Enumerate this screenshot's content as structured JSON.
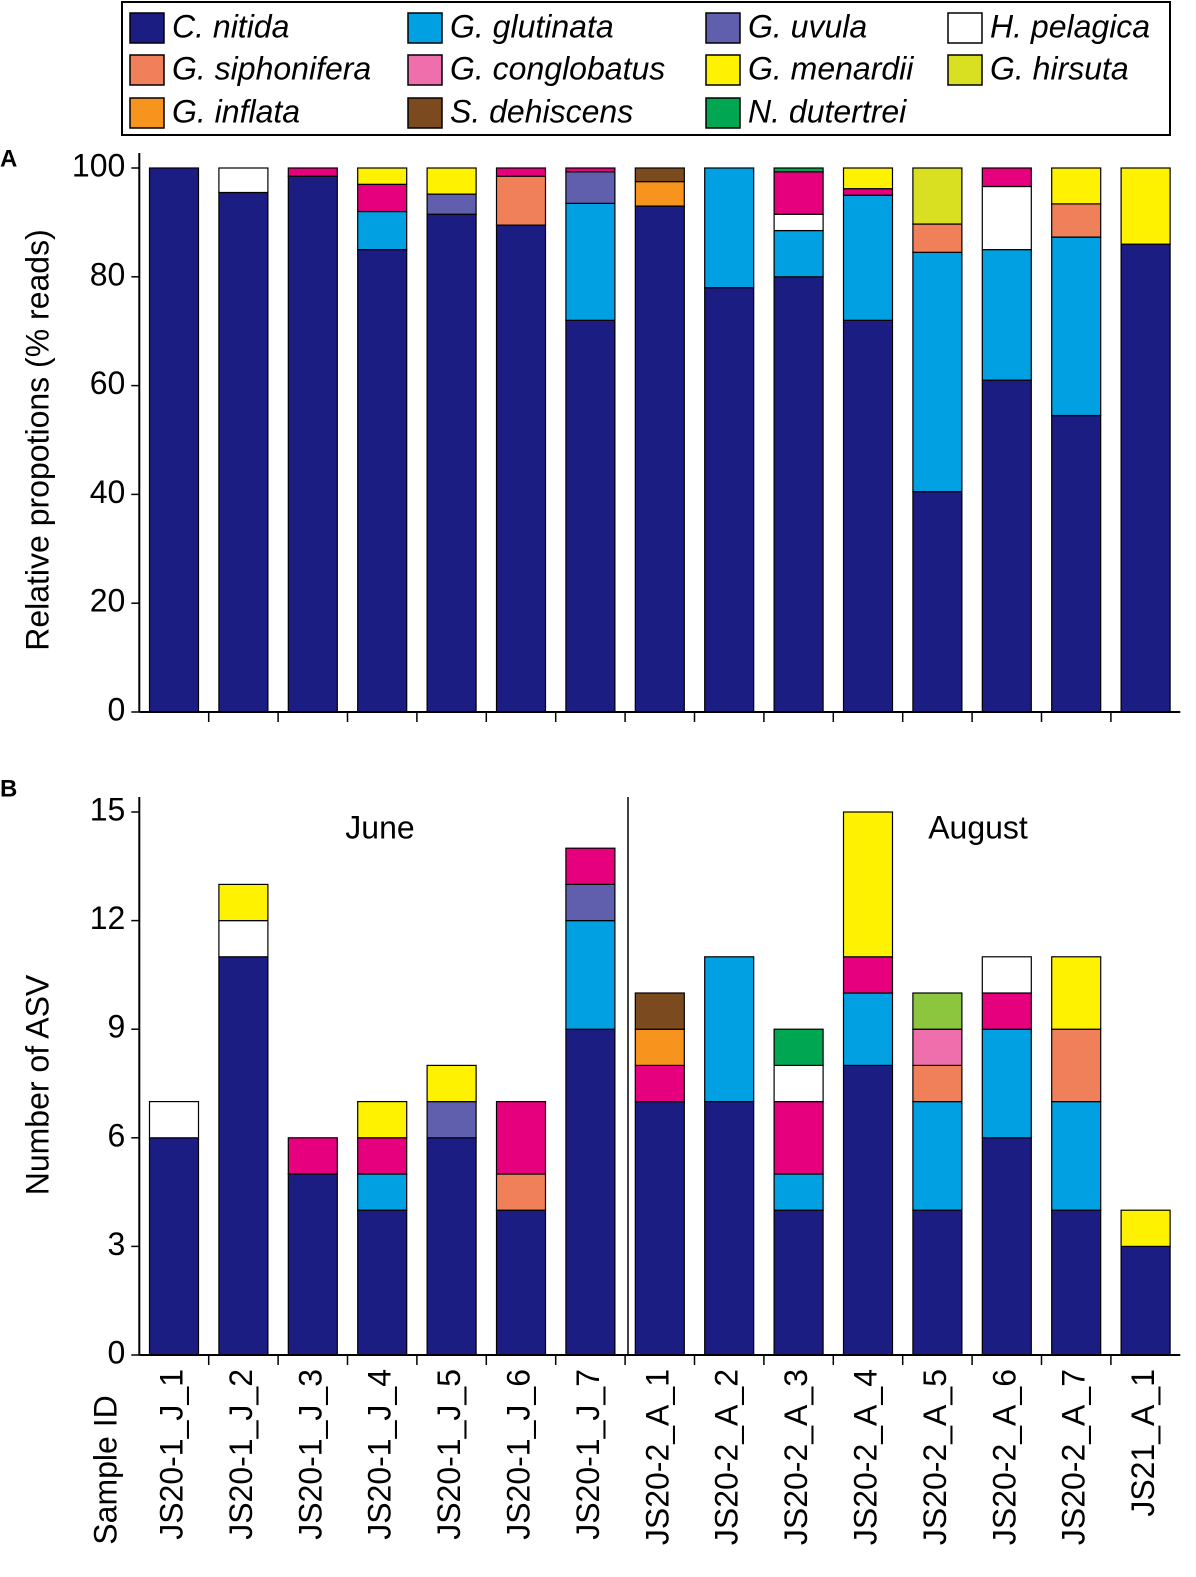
{
  "legend": [
    {
      "name": "C. nitida",
      "color": "#1b1d82"
    },
    {
      "name": "G. glutinata",
      "color": "#00a0e3"
    },
    {
      "name": "G. uvula",
      "color": "#5f5fad"
    },
    {
      "name": "H. pelagica",
      "color": "#ffffff"
    },
    {
      "name": "G. siphonifera",
      "color": "#f0805a"
    },
    {
      "name": "G. conglobatus",
      "color": "#ee6fab"
    },
    {
      "name": "G. menardii",
      "color": "#fff200"
    },
    {
      "name": "G. hirsuta",
      "color": "#d9e021"
    },
    {
      "name": "G. inflata",
      "color": "#f7941d"
    },
    {
      "name": "S. dehiscens",
      "color": "#7b4a1e"
    },
    {
      "name": "N. dutertrei",
      "color": "#00a651"
    }
  ],
  "chart_data": [
    {
      "type": "bar",
      "stacked": true,
      "panel": "A",
      "ylabel": "Relative propotions (% reads)",
      "ylim": [
        0,
        100
      ],
      "yticks": [
        0,
        20,
        40,
        60,
        80,
        100
      ],
      "series": [
        {
          "color": "#1b1d82",
          "values": [
            100,
            95.5,
            98.5,
            85,
            91.5,
            89.5,
            72,
            93,
            78,
            80,
            72,
            40.5,
            61,
            54.5,
            86
          ]
        },
        {
          "color": "#00a0e3",
          "values": [
            null,
            null,
            null,
            7,
            null,
            null,
            21.5,
            null,
            22,
            8.5,
            23,
            44,
            24,
            32.8,
            null
          ]
        },
        {
          "color": "#5f5fad",
          "values": [
            null,
            null,
            null,
            null,
            3.7,
            null,
            5.8,
            null,
            null,
            null,
            null,
            null,
            null,
            null,
            null
          ]
        },
        {
          "color": "#f0805a",
          "values": [
            null,
            null,
            null,
            null,
            null,
            9,
            null,
            null,
            null,
            null,
            null,
            5.2,
            null,
            6.1,
            null
          ]
        },
        {
          "color": "#ffffff",
          "values": [
            null,
            4.5,
            null,
            null,
            null,
            null,
            null,
            null,
            null,
            3,
            null,
            null,
            11.6,
            null,
            null
          ]
        },
        {
          "color": "#e6007e",
          "values": [
            null,
            null,
            1.5,
            5,
            null,
            1.5,
            0.7,
            null,
            null,
            7.8,
            1.2,
            null,
            3.4,
            null,
            null
          ]
        },
        {
          "color": "#f7941d",
          "values": [
            null,
            null,
            null,
            null,
            null,
            null,
            null,
            4.5,
            null,
            null,
            null,
            null,
            null,
            null,
            null
          ]
        },
        {
          "color": "#7b4a1e",
          "values": [
            null,
            null,
            null,
            null,
            null,
            null,
            null,
            2.5,
            null,
            null,
            null,
            null,
            null,
            null,
            null
          ]
        },
        {
          "color": "#00a651",
          "values": [
            null,
            null,
            null,
            null,
            null,
            null,
            null,
            null,
            null,
            0.7,
            null,
            null,
            null,
            null,
            null
          ]
        },
        {
          "color": "#d9e021",
          "values": [
            null,
            null,
            null,
            null,
            null,
            null,
            null,
            null,
            null,
            null,
            null,
            10.3,
            null,
            null,
            null
          ]
        },
        {
          "color": "#fff200",
          "values": [
            null,
            null,
            null,
            3,
            4.8,
            null,
            null,
            null,
            null,
            null,
            3.8,
            null,
            null,
            6.6,
            14
          ]
        }
      ]
    },
    {
      "type": "bar",
      "stacked": true,
      "panel": "B",
      "ylabel": "Number of ASV",
      "xlabel": "Sample ID",
      "annotations": [
        "June",
        "August"
      ],
      "categories": [
        "JS20-1_J_1",
        "JS20-1_J_2",
        "JS20-1_J_3",
        "JS20-1_J_4",
        "JS20-1_J_5",
        "JS20-1_J_6",
        "JS20-1_J_7",
        "JS20-2_A_1",
        "JS20-2_A_2",
        "JS20-2_A_3",
        "JS20-2_A_4",
        "JS20-2_A_5",
        "JS20-2_A_6",
        "JS20-2_A_7",
        "JS21_A_1"
      ],
      "ylim": [
        0,
        15
      ],
      "yticks": [
        0,
        3,
        6,
        9,
        12,
        15
      ],
      "series": [
        {
          "color": "#1b1d82",
          "values": [
            6,
            11,
            5,
            4,
            6,
            4,
            9,
            7,
            7,
            4,
            8,
            4,
            6,
            4,
            3
          ]
        },
        {
          "color": "#00a0e3",
          "values": [
            null,
            null,
            null,
            1,
            null,
            null,
            3,
            null,
            4,
            1,
            2,
            3,
            3,
            3,
            null
          ]
        },
        {
          "color": "#5f5fad",
          "values": [
            null,
            null,
            null,
            null,
            1,
            null,
            1,
            null,
            null,
            null,
            null,
            null,
            null,
            null,
            null
          ]
        },
        {
          "color": "#f0805a",
          "values": [
            null,
            null,
            null,
            null,
            null,
            1,
            null,
            null,
            null,
            null,
            null,
            1,
            null,
            2,
            null
          ]
        },
        {
          "color": "#ee6fab",
          "values": [
            null,
            null,
            null,
            null,
            null,
            null,
            null,
            null,
            null,
            null,
            null,
            1,
            null,
            null,
            null
          ]
        },
        {
          "color": "#e6007e",
          "values": [
            null,
            null,
            1,
            1,
            null,
            2,
            1,
            1,
            null,
            2,
            1,
            null,
            1,
            null,
            null
          ]
        },
        {
          "color": "#ffffff",
          "values": [
            1,
            1,
            null,
            null,
            null,
            null,
            null,
            null,
            null,
            1,
            null,
            null,
            1,
            null,
            null
          ]
        },
        {
          "color": "#f7941d",
          "values": [
            null,
            null,
            null,
            null,
            null,
            null,
            null,
            1,
            null,
            null,
            null,
            null,
            null,
            null,
            null
          ]
        },
        {
          "color": "#7b4a1e",
          "values": [
            null,
            null,
            null,
            null,
            null,
            null,
            null,
            1,
            null,
            null,
            null,
            null,
            null,
            null,
            null
          ]
        },
        {
          "color": "#00a651",
          "values": [
            null,
            null,
            null,
            null,
            null,
            null,
            null,
            null,
            null,
            1,
            null,
            null,
            null,
            null,
            null
          ]
        },
        {
          "color": "#8cc63f",
          "values": [
            null,
            null,
            null,
            null,
            null,
            null,
            null,
            null,
            null,
            null,
            null,
            1,
            null,
            null,
            null
          ]
        },
        {
          "color": "#fff200",
          "values": [
            null,
            1,
            null,
            1,
            1,
            null,
            null,
            null,
            null,
            null,
            4,
            null,
            null,
            2,
            1
          ]
        }
      ]
    }
  ]
}
